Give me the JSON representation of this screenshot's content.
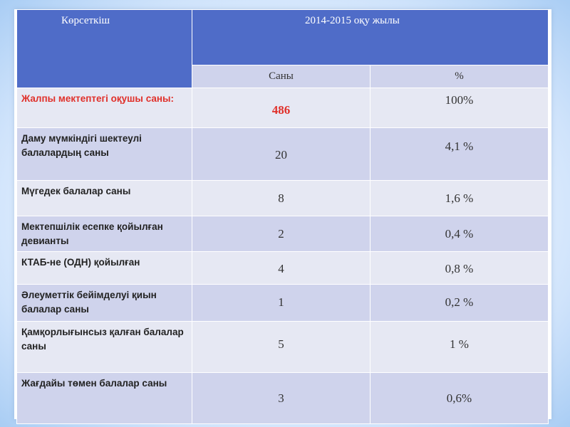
{
  "header": {
    "indicator": "Көрсеткіш",
    "year": "2014-2015 оқу жылы",
    "count": "Саны",
    "percent": "%"
  },
  "rows": [
    {
      "label": "Жалпы мектептегі оқушы саны:",
      "count": "486",
      "percent": "100%"
    },
    {
      "label": "Даму мүмкіндігі  шектеулі балалардың саны",
      "count": "20",
      "percent": "4,1 %"
    },
    {
      "label": "Мүгедек балалар саны",
      "count": "8",
      "percent": "1,6 %"
    },
    {
      "label": "Мектепшілік есепке қойылған девианты",
      "count": "2",
      "percent": "0,4 %"
    },
    {
      "label": "КТАБ-не (ОДН) қойылған",
      "count": "4",
      "percent": "0,8 %"
    },
    {
      "label": "Әлеуметтік бейімделуі қиын балалар  саны",
      "count": "1",
      "percent": "0,2 %"
    },
    {
      "label": "Қамқорлығынсыз қалған балалар саны",
      "count": "5",
      "percent": "1 %"
    },
    {
      "label": "Жағдайы төмен балалар саны",
      "count": "3",
      "percent": "0,6%"
    }
  ],
  "colors": {
    "header": "#4f6cc8",
    "row_dark": "#cfd3ec",
    "row_light": "#e6e8f3",
    "highlight": "#e0302a"
  }
}
